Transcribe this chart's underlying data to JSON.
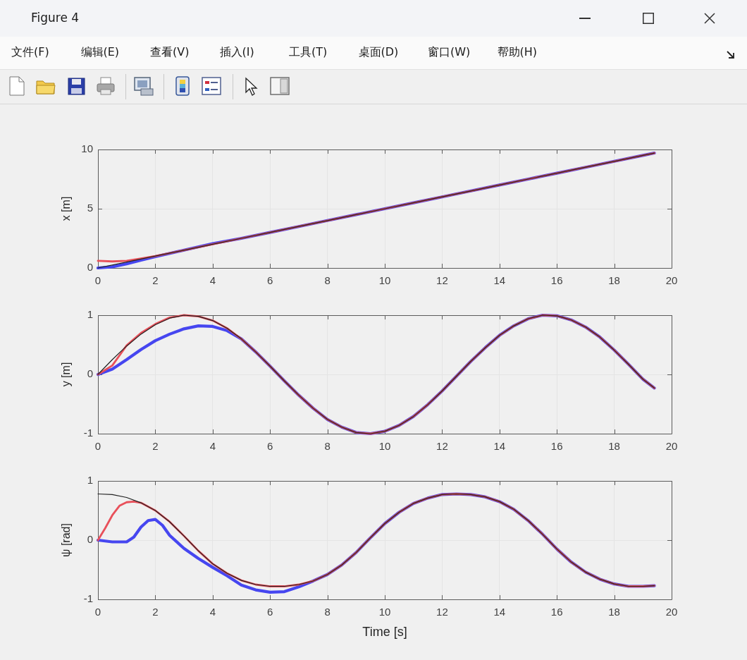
{
  "chart_data": [
    {
      "type": "other",
      "title": "Figure 4",
      "annotations": [
        "文件(F)",
        "编辑(E)",
        "查看(V)",
        "插入(I)",
        "工具(T)",
        "桌面(D)",
        "窗口(W)",
        "帮助(H)"
      ]
    },
    {
      "type": "line",
      "ylabel": "x [m]",
      "xlim": [
        0,
        20
      ],
      "xticks": [
        0,
        2,
        4,
        6,
        8,
        10,
        12,
        14,
        16,
        18,
        20
      ],
      "ylim": [
        0,
        10
      ],
      "yticks": [
        0,
        5,
        10
      ],
      "grid": true,
      "x": [
        0,
        0.5,
        1,
        1.5,
        2,
        3,
        4,
        5,
        6,
        7,
        8,
        9,
        10,
        11,
        12,
        13,
        14,
        15,
        16,
        17,
        18,
        19,
        19.4
      ],
      "series": [
        {
          "color": "#4646f0",
          "values": [
            0,
            0.1,
            0.35,
            0.65,
            0.95,
            1.5,
            2.05,
            2.5,
            3,
            3.5,
            4,
            4.5,
            5,
            5.5,
            6,
            6.5,
            7,
            7.5,
            8,
            8.5,
            9,
            9.5,
            9.7
          ]
        },
        {
          "color": "#e8505a",
          "values": [
            0.6,
            0.55,
            0.6,
            0.8,
            1,
            1.5,
            2,
            2.5,
            3,
            3.5,
            4,
            4.5,
            5,
            5.5,
            6,
            6.5,
            7,
            7.5,
            8,
            8.5,
            9,
            9.5,
            9.7
          ]
        },
        {
          "color": "#222222",
          "values": [
            0,
            0.25,
            0.5,
            0.75,
            1,
            1.5,
            2,
            2.5,
            3,
            3.5,
            4,
            4.5,
            5,
            5.5,
            6,
            6.5,
            7,
            7.5,
            8,
            8.5,
            9,
            9.5,
            9.7
          ]
        }
      ]
    },
    {
      "type": "line",
      "ylabel": "y [m]",
      "xlim": [
        0,
        20
      ],
      "xticks": [
        0,
        2,
        4,
        6,
        8,
        10,
        12,
        14,
        16,
        18,
        20
      ],
      "ylim": [
        -1,
        1
      ],
      "yticks": [
        -1,
        0,
        1
      ],
      "grid": true,
      "x": [
        0,
        0.5,
        1,
        1.5,
        2,
        2.5,
        3,
        3.5,
        4,
        4.5,
        5,
        5.5,
        6,
        6.5,
        7,
        7.5,
        8,
        8.5,
        9,
        9.5,
        10,
        10.5,
        11,
        11.5,
        12,
        12.5,
        13,
        13.5,
        14,
        14.5,
        15,
        15.5,
        16,
        16.5,
        17,
        17.5,
        18,
        18.5,
        19,
        19.4
      ],
      "series": [
        {
          "color": "#4646f0",
          "values": [
            0,
            0.09,
            0.25,
            0.42,
            0.57,
            0.68,
            0.77,
            0.82,
            0.81,
            0.74,
            0.6,
            0.38,
            0.14,
            -0.11,
            -0.35,
            -0.57,
            -0.76,
            -0.89,
            -0.98,
            -1,
            -0.96,
            -0.86,
            -0.71,
            -0.51,
            -0.28,
            -0.03,
            0.22,
            0.45,
            0.66,
            0.82,
            0.94,
            1,
            0.99,
            0.92,
            0.8,
            0.63,
            0.41,
            0.17,
            -0.08,
            -0.23
          ]
        },
        {
          "color": "#e8505a",
          "values": [
            0,
            0.15,
            0.49,
            0.7,
            0.85,
            0.96,
            1,
            0.98,
            0.91,
            0.78,
            0.6,
            0.38,
            0.14,
            -0.11,
            -0.35,
            -0.57,
            -0.76,
            -0.89,
            -0.98,
            -1,
            -0.96,
            -0.86,
            -0.71,
            -0.51,
            -0.28,
            -0.03,
            0.22,
            0.45,
            0.66,
            0.82,
            0.94,
            1,
            0.99,
            0.92,
            0.8,
            0.63,
            0.41,
            0.17,
            -0.08,
            -0.23
          ]
        },
        {
          "color": "#222222",
          "values": [
            0,
            0.25,
            0.48,
            0.68,
            0.84,
            0.95,
            1,
            0.98,
            0.91,
            0.78,
            0.6,
            0.38,
            0.14,
            -0.11,
            -0.35,
            -0.57,
            -0.76,
            -0.89,
            -0.98,
            -1,
            -0.96,
            -0.86,
            -0.71,
            -0.51,
            -0.28,
            -0.03,
            0.22,
            0.45,
            0.66,
            0.82,
            0.94,
            1,
            0.99,
            0.92,
            0.8,
            0.63,
            0.41,
            0.17,
            -0.08,
            -0.23
          ]
        }
      ]
    },
    {
      "type": "line",
      "ylabel": "ψ [rad]",
      "xlabel": "Time [s]",
      "xlim": [
        0,
        20
      ],
      "xticks": [
        0,
        2,
        4,
        6,
        8,
        10,
        12,
        14,
        16,
        18,
        20
      ],
      "ylim": [
        -1,
        1
      ],
      "yticks": [
        -1,
        0,
        1
      ],
      "grid": true,
      "x": [
        0,
        0.5,
        1,
        1.5,
        2,
        2.5,
        3,
        3.5,
        4,
        4.5,
        5,
        5.5,
        6,
        6.5,
        7,
        7.5,
        8,
        8.5,
        9,
        9.5,
        10,
        10.5,
        11,
        11.5,
        12,
        12.5,
        13,
        13.5,
        14,
        14.5,
        15,
        15.5,
        16,
        16.5,
        17,
        17.5,
        18,
        18.5,
        19,
        19.4
      ],
      "series": [
        {
          "color": "#4646f0",
          "x": [
            0,
            0.5,
            1,
            1.25,
            1.5,
            1.75,
            2,
            2.25,
            2.5,
            3,
            3.5,
            4,
            4.5,
            5,
            5.5,
            6,
            6.5,
            7,
            7.5,
            8,
            8.5,
            9,
            9.5,
            10,
            10.5,
            11,
            11.5,
            12,
            12.5,
            13,
            13.5,
            14,
            14.5,
            15,
            15.5,
            16,
            16.5,
            17,
            17.5,
            18,
            18.5,
            19,
            19.4
          ],
          "values": [
            0,
            -0.03,
            -0.03,
            0.05,
            0.22,
            0.33,
            0.35,
            0.25,
            0.08,
            -0.14,
            -0.31,
            -0.46,
            -0.6,
            -0.76,
            -0.84,
            -0.88,
            -0.87,
            -0.79,
            -0.69,
            -0.58,
            -0.42,
            -0.21,
            0.04,
            0.28,
            0.47,
            0.62,
            0.71,
            0.77,
            0.78,
            0.77,
            0.73,
            0.65,
            0.52,
            0.33,
            0.1,
            -0.15,
            -0.37,
            -0.54,
            -0.66,
            -0.74,
            -0.78,
            -0.78,
            -0.77
          ]
        },
        {
          "color": "#e8505a",
          "x": [
            0,
            0.25,
            0.5,
            0.75,
            1,
            1.25,
            1.5,
            2,
            2.5,
            3,
            3.5,
            4,
            4.5,
            5,
            5.5,
            6,
            6.5,
            7,
            7.5,
            8,
            8.5,
            9,
            9.5,
            10,
            10.5,
            11,
            11.5,
            12,
            12.5,
            13,
            13.5,
            14,
            14.5,
            15,
            15.5,
            16,
            16.5,
            17,
            17.5,
            18,
            18.5,
            19,
            19.4
          ],
          "values": [
            0,
            0.2,
            0.42,
            0.58,
            0.64,
            0.65,
            0.63,
            0.5,
            0.31,
            0.07,
            -0.18,
            -0.4,
            -0.56,
            -0.68,
            -0.75,
            -0.78,
            -0.78,
            -0.75,
            -0.69,
            -0.58,
            -0.42,
            -0.21,
            0.04,
            0.28,
            0.47,
            0.62,
            0.71,
            0.77,
            0.78,
            0.77,
            0.73,
            0.65,
            0.52,
            0.33,
            0.1,
            -0.15,
            -0.37,
            -0.54,
            -0.66,
            -0.74,
            -0.78,
            -0.78,
            -0.77
          ]
        },
        {
          "color": "#222222",
          "values": [
            0.78,
            0.77,
            0.72,
            0.63,
            0.5,
            0.31,
            0.07,
            -0.18,
            -0.4,
            -0.56,
            -0.68,
            -0.75,
            -0.78,
            -0.78,
            -0.75,
            -0.69,
            -0.58,
            -0.42,
            -0.21,
            0.04,
            0.28,
            0.47,
            0.62,
            0.71,
            0.77,
            0.78,
            0.77,
            0.73,
            0.65,
            0.52,
            0.33,
            0.1,
            -0.15,
            -0.37,
            -0.54,
            -0.66,
            -0.74,
            -0.78,
            -0.78,
            -0.77
          ]
        }
      ]
    }
  ]
}
